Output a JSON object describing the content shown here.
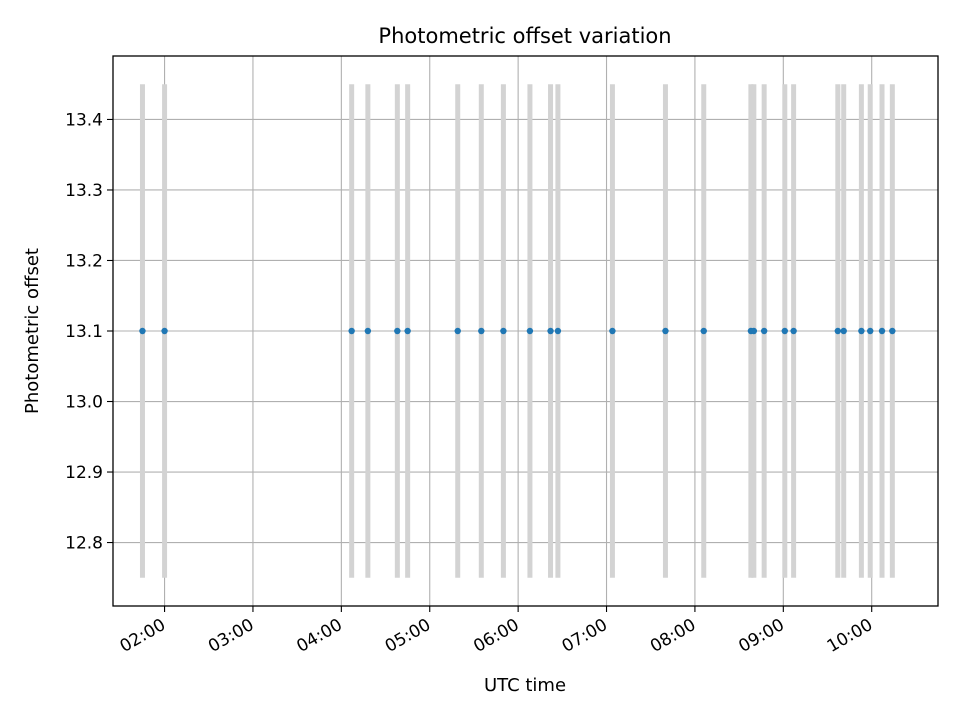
{
  "chart_data": {
    "type": "scatter",
    "title": "Photometric offset variation",
    "xlabel": "UTC time",
    "ylabel": "Photometric offset",
    "x_tick_labels": [
      "02:00",
      "03:00",
      "04:00",
      "05:00",
      "06:00",
      "07:00",
      "08:00",
      "09:00",
      "10:00"
    ],
    "y_tick_labels": [
      "12.8",
      "12.9",
      "13.0",
      "13.1",
      "13.2",
      "13.3",
      "13.4"
    ],
    "y_ticks": [
      12.8,
      12.9,
      13.0,
      13.1,
      13.2,
      13.3,
      13.4
    ],
    "xlim": [
      "01:25",
      "10:45"
    ],
    "ylim": [
      12.71,
      13.49
    ],
    "grid": true,
    "colors": {
      "point": "#1f77b4",
      "errorbar": "#d3d3d3",
      "grid": "#b0b0b0"
    },
    "series": [
      {
        "x": [
          "01:45",
          "02:00",
          "04:07",
          "04:18",
          "04:38",
          "04:45",
          "05:19",
          "05:35",
          "05:50",
          "06:08",
          "06:22",
          "06:27",
          "07:04",
          "07:40",
          "08:06",
          "08:38",
          "08:40",
          "08:47",
          "09:01",
          "09:07",
          "09:37",
          "09:41",
          "09:53",
          "09:59",
          "10:07",
          "10:14"
        ],
        "y": [
          13.1,
          13.1,
          13.1,
          13.1,
          13.1,
          13.1,
          13.1,
          13.1,
          13.1,
          13.1,
          13.1,
          13.1,
          13.1,
          13.1,
          13.1,
          13.1,
          13.1,
          13.1,
          13.1,
          13.1,
          13.1,
          13.1,
          13.1,
          13.1,
          13.1,
          13.1
        ],
        "yerr": [
          0.35,
          0.35,
          0.35,
          0.35,
          0.35,
          0.35,
          0.35,
          0.35,
          0.35,
          0.35,
          0.35,
          0.35,
          0.35,
          0.35,
          0.35,
          0.35,
          0.35,
          0.35,
          0.35,
          0.35,
          0.35,
          0.35,
          0.35,
          0.35,
          0.35,
          0.35
        ]
      }
    ]
  }
}
